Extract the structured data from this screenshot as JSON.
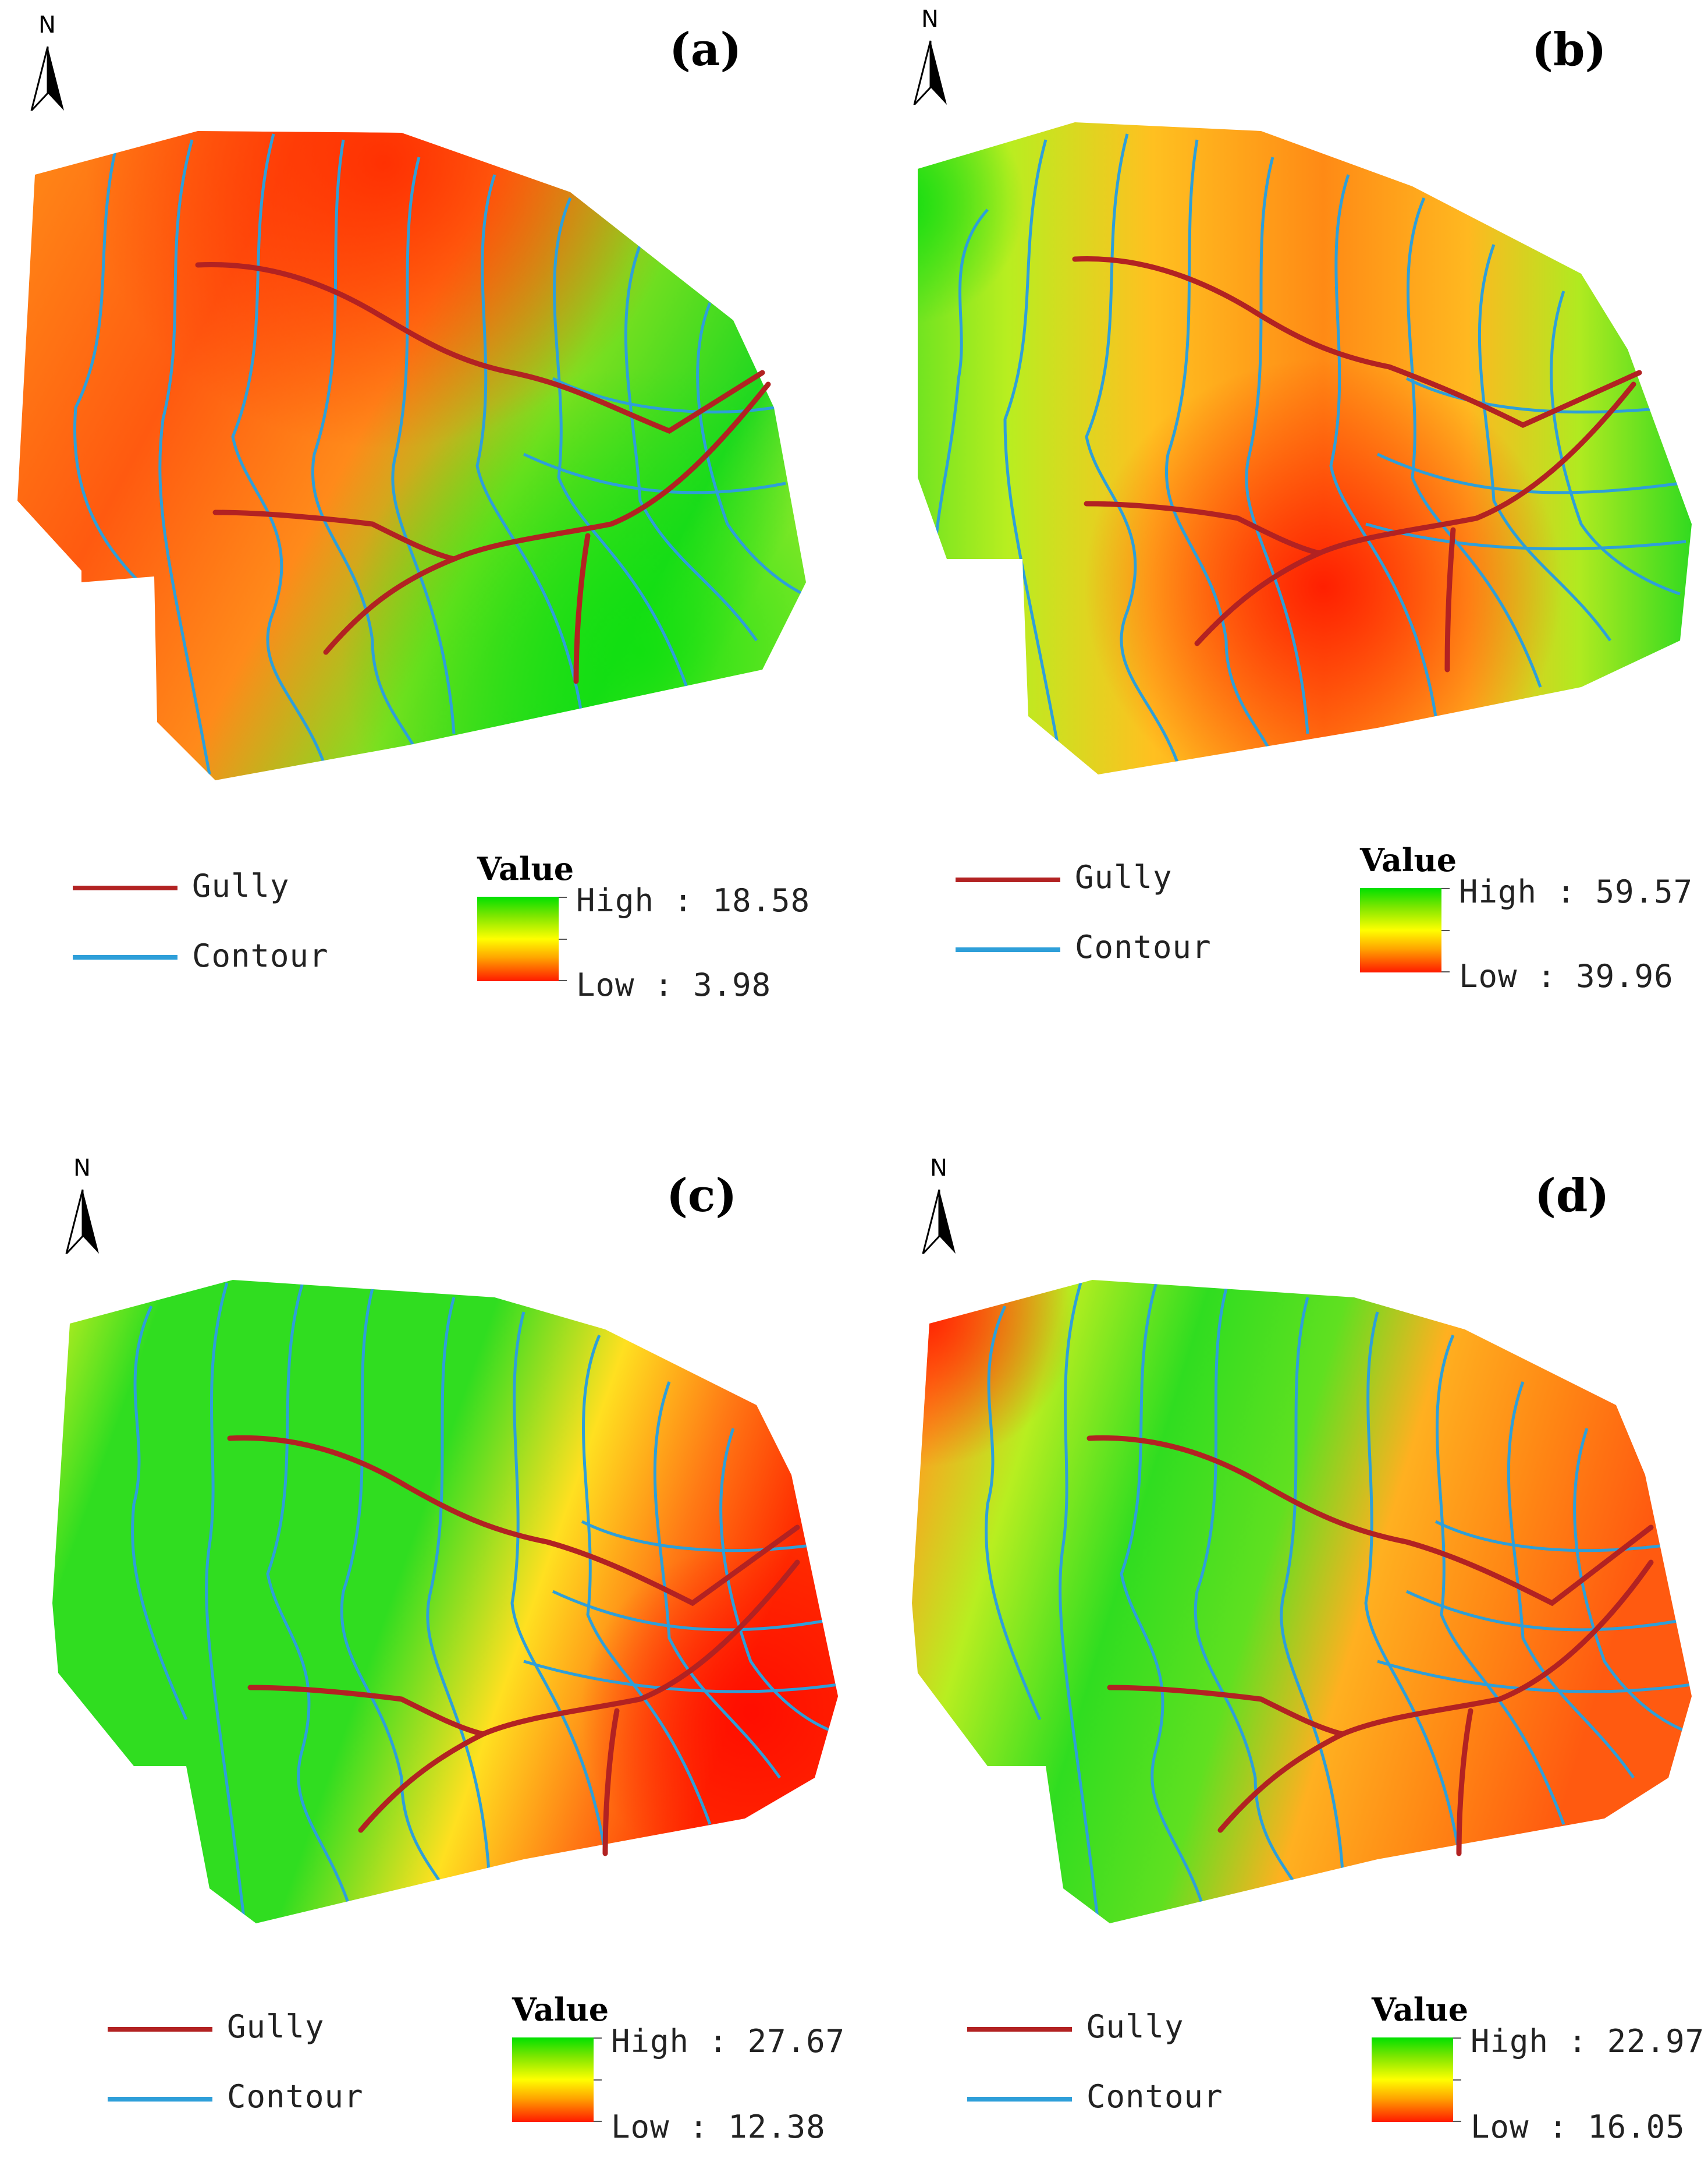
{
  "panels": [
    {
      "label": "(a)",
      "north": "N",
      "legend": {
        "gully": "Gully",
        "contour": "Contour",
        "value_title": "Value",
        "high": "High : 18.58",
        "low": "Low : 3.98"
      }
    },
    {
      "label": "(b)",
      "north": "N",
      "legend": {
        "gully": "Gully",
        "contour": "Contour",
        "value_title": "Value",
        "high": "High : 59.57",
        "low": "Low : 39.96"
      }
    },
    {
      "label": "(c)",
      "north": "N",
      "legend": {
        "gully": "Gully",
        "contour": "Contour",
        "value_title": "Value",
        "high": "High : 27.67",
        "low": "Low : 12.38"
      }
    },
    {
      "label": "(d)",
      "north": "N",
      "legend": {
        "gully": "Gully",
        "contour": "Contour",
        "value_title": "Value",
        "high": "High : 22.97",
        "low": "Low : 16.05"
      }
    }
  ],
  "colors": {
    "gully": "#b22222",
    "contour": "#2e9fd9",
    "high": "#00e000",
    "mid": "#ffff00",
    "low": "#ff1a00"
  }
}
